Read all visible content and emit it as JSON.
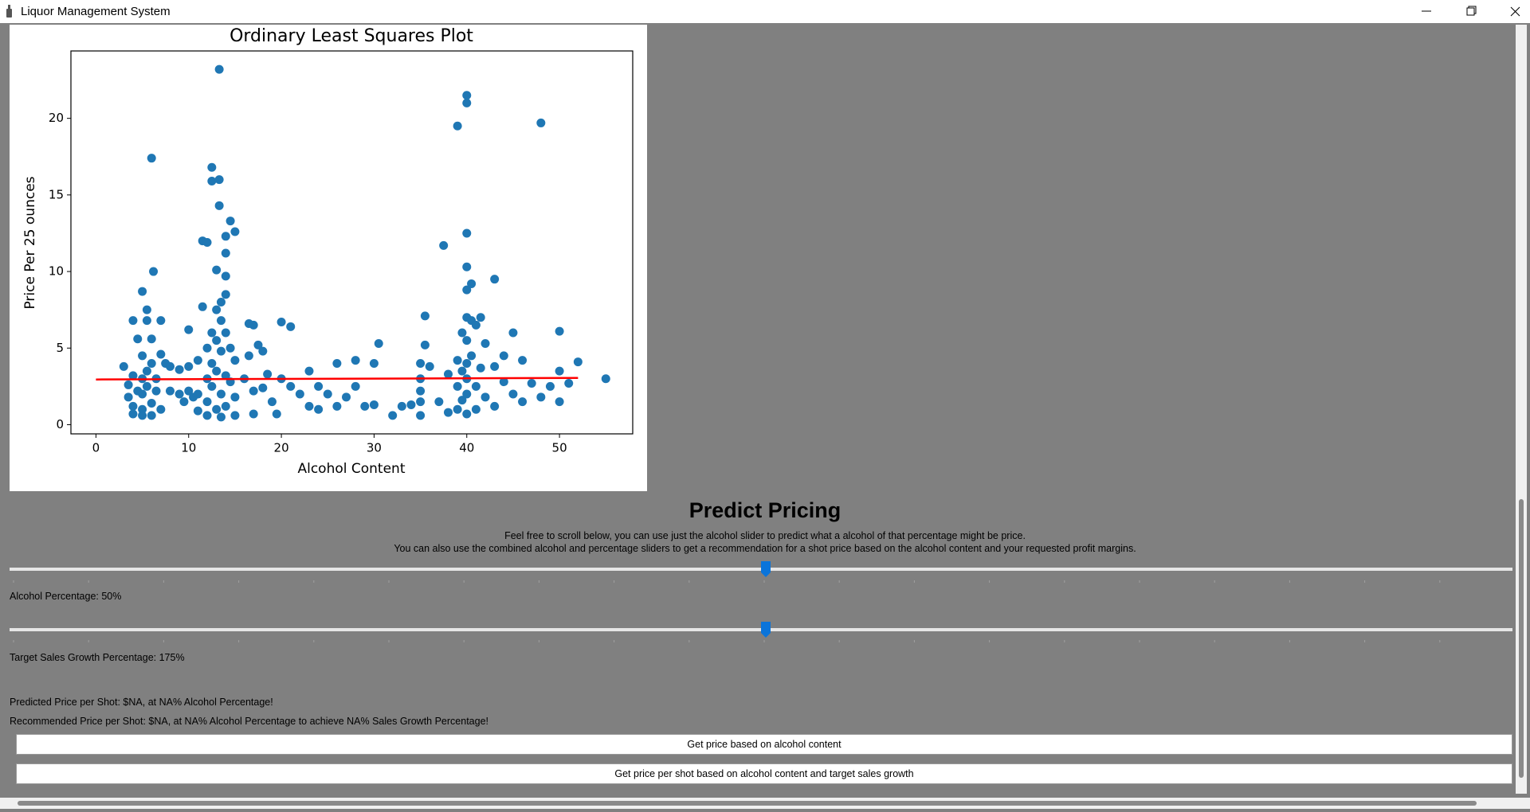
{
  "window": {
    "title": "Liquor Management System"
  },
  "chart_data": {
    "type": "scatter",
    "title": "Ordinary Least Squares Plot",
    "x_label": "Alcohol Content",
    "y_label": "Price Per 25 ounces",
    "color": "#1f77b4",
    "x": [
      3,
      3.5,
      3.5,
      4,
      4,
      4,
      4,
      4.5,
      4.5,
      5,
      5,
      5,
      5,
      5,
      5,
      5.5,
      5.5,
      5.5,
      5.5,
      6,
      6,
      6,
      6,
      6,
      6.2,
      6.5,
      6.5,
      7,
      7,
      7,
      7.5,
      8,
      8,
      9,
      9,
      9.5,
      10,
      10,
      10,
      10.5,
      11,
      11,
      11,
      11.5,
      11.5,
      12,
      12,
      12,
      12,
      12,
      12.5,
      12.5,
      12.5,
      12.5,
      12.5,
      13,
      13,
      13,
      13,
      13,
      13.3,
      13.3,
      13.3,
      13.5,
      13.5,
      13.5,
      13.5,
      13.5,
      14,
      14,
      14,
      14,
      14,
      14,
      14,
      14.5,
      14.5,
      14.5,
      15,
      15,
      15,
      15,
      16,
      16.5,
      16.5,
      17,
      17,
      17,
      17.5,
      18,
      18,
      18.5,
      19,
      19.5,
      20,
      20,
      21,
      21,
      22,
      23,
      23,
      24,
      24,
      25,
      26,
      26,
      27,
      28,
      28,
      29,
      30,
      30,
      30.5,
      32,
      33,
      34,
      35,
      35,
      35,
      35,
      35,
      35.5,
      35.5,
      36,
      37,
      37.5,
      38,
      38,
      39,
      39,
      39,
      39,
      39.5,
      39.5,
      39.5,
      40,
      40,
      40,
      40,
      40,
      40,
      40,
      40,
      40,
      40,
      40,
      40.5,
      40.5,
      40.5,
      41,
      41,
      41,
      41.5,
      41.5,
      42,
      42,
      43,
      43,
      43,
      44,
      44,
      45,
      45,
      46,
      46,
      47,
      48,
      48,
      49,
      50,
      50,
      50,
      51,
      52,
      55
    ],
    "y": [
      3.8,
      1.8,
      2.6,
      6.8,
      3.2,
      1.2,
      0.7,
      2.2,
      5.6,
      8.7,
      4.5,
      3.0,
      2.0,
      1.0,
      0.6,
      7.5,
      3.5,
      2.5,
      6.8,
      17.4,
      5.6,
      4.0,
      1.4,
      0.6,
      10.0,
      3.0,
      2.2,
      6.8,
      4.6,
      1.0,
      4.0,
      3.8,
      2.2,
      3.6,
      2.0,
      1.5,
      6.2,
      3.8,
      2.2,
      1.8,
      4.2,
      2.0,
      0.9,
      12.0,
      7.7,
      5.0,
      3.0,
      1.5,
      0.6,
      11.9,
      16.8,
      15.9,
      6.0,
      4.0,
      2.5,
      10.1,
      7.5,
      5.5,
      3.5,
      1.0,
      23.2,
      16.0,
      14.3,
      8.0,
      6.8,
      4.8,
      2.0,
      0.5,
      12.3,
      11.2,
      9.7,
      8.5,
      6.0,
      3.2,
      1.2,
      13.3,
      5.0,
      2.8,
      12.6,
      4.2,
      1.8,
      0.6,
      3.0,
      6.6,
      4.5,
      6.5,
      2.2,
      0.7,
      5.2,
      4.8,
      2.4,
      3.3,
      1.5,
      0.7,
      6.7,
      3.0,
      6.4,
      2.5,
      2.0,
      3.5,
      1.2,
      2.5,
      1.0,
      2.0,
      4.0,
      1.2,
      1.8,
      4.2,
      2.5,
      1.2,
      4.0,
      1.3,
      5.3,
      0.6,
      1.2,
      1.3,
      4.0,
      3.0,
      2.2,
      1.5,
      0.6,
      7.1,
      5.2,
      3.8,
      1.5,
      11.7,
      3.3,
      0.8,
      19.5,
      4.2,
      2.5,
      1.0,
      6.0,
      3.5,
      1.6,
      21.5,
      21.0,
      12.5,
      10.3,
      8.8,
      7.0,
      5.5,
      4.0,
      3.0,
      2.0,
      0.7,
      9.2,
      6.8,
      4.5,
      6.5,
      2.5,
      1.0,
      7.0,
      3.7,
      5.3,
      1.8,
      9.5,
      3.8,
      1.2,
      4.5,
      2.8,
      6.0,
      2.0,
      1.5,
      4.2,
      2.7,
      19.7,
      1.8,
      2.5,
      6.1,
      3.5,
      1.5,
      2.7,
      4.1,
      3.0
    ],
    "fit_line": {
      "color": "#ff0000",
      "x": [
        0,
        52
      ],
      "y": [
        2.95,
        3.05
      ]
    },
    "xlim": [
      -2.7,
      57.9
    ],
    "ylim": [
      -0.6,
      24.4
    ],
    "xticks": [
      0,
      10,
      20,
      30,
      40,
      50
    ],
    "yticks": [
      0,
      5,
      10,
      15,
      20
    ]
  },
  "predict": {
    "heading": "Predict Pricing",
    "description": [
      "Feel free to scroll below, you can use just the alcohol slider to predict what a alcohol of that percentage might be price.",
      "You can also use the combined alcohol and percentage sliders to get a recommendation for a shot price based on the alcohol content and your requested profit margins."
    ],
    "alcohol_label": "Alcohol Percentage: 50%",
    "growth_label": "Target Sales Growth Percentage: 175%",
    "predicted": "Predicted Price per Shot: $NA, at NA% Alcohol Percentage!",
    "recommended": "Recommended Price per Shot: $NA, at NA% Alcohol Percentage to achieve NA% Sales Growth Percentage!",
    "button_alcohol": "Get price based on alcohol content",
    "button_growth": "Get price per shot based on alcohol content and target sales growth"
  }
}
